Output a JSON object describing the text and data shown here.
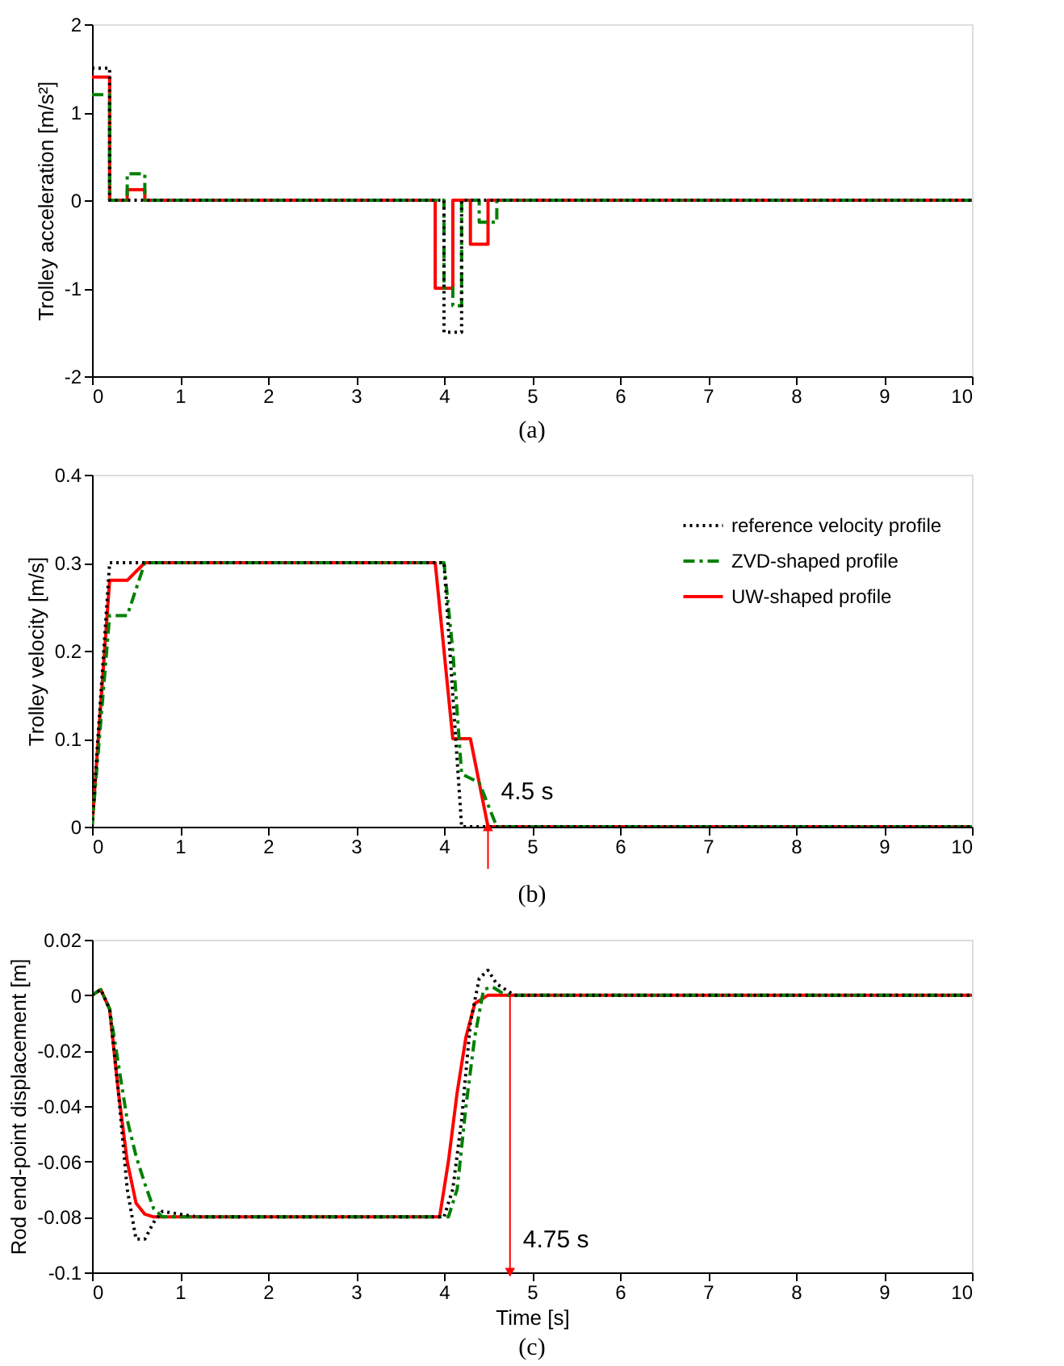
{
  "chart_data": [
    {
      "type": "step",
      "title": "(a)",
      "ylabel": "Trolley acceleration [m/s²]",
      "xlim": [
        0,
        10
      ],
      "xticks": [
        0,
        1,
        2,
        3,
        4,
        5,
        6,
        7,
        8,
        9,
        10
      ],
      "ylim": [
        -2,
        2
      ],
      "yticks": [
        -2,
        -1,
        0,
        1,
        2
      ],
      "grid": false,
      "legend": false,
      "series": [
        {
          "color": "#000000",
          "line_style": "dotted",
          "x": [
            0,
            0.2,
            4.0,
            4.2,
            10
          ],
          "values": [
            1.5,
            0,
            -1.5,
            0,
            0
          ]
        },
        {
          "color": "#008000",
          "line_style": "dashed",
          "x": [
            0,
            0.2,
            0.4,
            0.6,
            4.0,
            4.1,
            4.2,
            4.4,
            4.6,
            10
          ],
          "values": [
            1.2,
            0,
            0.3,
            0,
            -1.0,
            -1.2,
            0,
            -0.25,
            0,
            0
          ]
        },
        {
          "color": "#ff0000",
          "line_style": "solid",
          "x": [
            0,
            0.2,
            0.4,
            0.6,
            3.9,
            4.1,
            4.3,
            4.5,
            10
          ],
          "values": [
            1.4,
            0,
            0.12,
            0,
            -1.0,
            0,
            -0.5,
            0,
            0
          ]
        }
      ]
    },
    {
      "type": "line",
      "title": "(b)",
      "ylabel": "Trolley velocity [m/s]",
      "xlim": [
        0,
        10
      ],
      "xticks": [
        0,
        1,
        2,
        3,
        4,
        5,
        6,
        7,
        8,
        9,
        10
      ],
      "ylim": [
        0,
        0.4
      ],
      "yticks": [
        0,
        0.1,
        0.2,
        0.3,
        0.4
      ],
      "grid": false,
      "legend": "top right",
      "annotations": [
        {
          "text": "4.5 s",
          "x": 4.5,
          "y": 0
        }
      ],
      "series": [
        {
          "name": "reference velocity profile",
          "color": "#000000",
          "line_style": "dotted",
          "x": [
            0,
            0.2,
            4.0,
            4.2,
            10
          ],
          "values": [
            0,
            0.3,
            0.3,
            0,
            0
          ]
        },
        {
          "name": "ZVD-shaped profile",
          "color": "#008000",
          "line_style": "dashed",
          "x": [
            0,
            0.2,
            0.4,
            0.6,
            4.0,
            4.1,
            4.2,
            4.4,
            4.6,
            10
          ],
          "values": [
            0,
            0.24,
            0.24,
            0.3,
            0.3,
            0.2,
            0.06,
            0.05,
            0,
            0
          ]
        },
        {
          "name": "UW-shaped profile",
          "color": "#ff0000",
          "line_style": "solid",
          "x": [
            0,
            0.2,
            0.4,
            0.6,
            3.9,
            4.1,
            4.3,
            4.5,
            10
          ],
          "values": [
            0,
            0.28,
            0.28,
            0.3,
            0.3,
            0.1,
            0.1,
            0,
            0
          ]
        }
      ]
    },
    {
      "type": "line",
      "title": "(c)",
      "xlabel": "Time [s]",
      "ylabel": "Rod end-point displacement [m]",
      "xlim": [
        0,
        10
      ],
      "xticks": [
        0,
        1,
        2,
        3,
        4,
        5,
        6,
        7,
        8,
        9,
        10
      ],
      "ylim": [
        -0.1,
        0.02
      ],
      "yticks": [
        -0.1,
        -0.08,
        -0.06,
        -0.04,
        -0.02,
        0,
        0.02
      ],
      "grid": false,
      "legend": false,
      "annotations": [
        {
          "text": "4.75 s",
          "x": 4.75,
          "y": 0
        }
      ],
      "series": [
        {
          "color": "#000000",
          "line_style": "dotted",
          "x": [
            0,
            0.1,
            0.2,
            0.3,
            0.4,
            0.5,
            0.6,
            0.7,
            0.8,
            1.0,
            1.2,
            4.0,
            4.1,
            4.2,
            4.3,
            4.4,
            4.5,
            4.6,
            4.8,
            10
          ],
          "values": [
            0,
            0.002,
            -0.005,
            -0.035,
            -0.07,
            -0.088,
            -0.088,
            -0.082,
            -0.078,
            -0.079,
            -0.08,
            -0.08,
            -0.07,
            -0.045,
            -0.01,
            0.006,
            0.009,
            0.004,
            0,
            0
          ]
        },
        {
          "color": "#008000",
          "line_style": "dashed",
          "x": [
            0,
            0.1,
            0.2,
            0.3,
            0.4,
            0.5,
            0.6,
            0.7,
            0.8,
            1.2,
            4.05,
            4.15,
            4.25,
            4.35,
            4.45,
            4.55,
            4.7,
            10
          ],
          "values": [
            0,
            0.002,
            -0.005,
            -0.025,
            -0.045,
            -0.058,
            -0.068,
            -0.077,
            -0.08,
            -0.08,
            -0.08,
            -0.07,
            -0.04,
            -0.015,
            0.002,
            0.003,
            0,
            0
          ]
        },
        {
          "color": "#ff0000",
          "line_style": "solid",
          "x": [
            0,
            0.1,
            0.2,
            0.3,
            0.4,
            0.5,
            0.6,
            0.7,
            3.95,
            4.05,
            4.15,
            4.25,
            4.35,
            4.5,
            10
          ],
          "values": [
            0,
            0.002,
            -0.005,
            -0.035,
            -0.06,
            -0.075,
            -0.079,
            -0.08,
            -0.08,
            -0.06,
            -0.035,
            -0.015,
            -0.003,
            0,
            0
          ]
        }
      ]
    }
  ]
}
